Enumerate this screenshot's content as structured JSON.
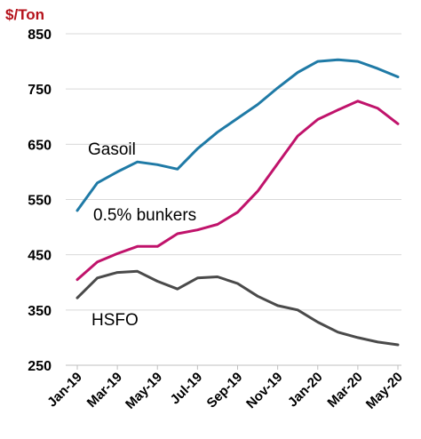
{
  "chart_data": {
    "type": "line",
    "unit_label": "$/Ton",
    "ylim": [
      250,
      850
    ],
    "yticks": [
      250,
      350,
      450,
      550,
      650,
      750,
      850
    ],
    "xtick_labels": [
      "Jan-19",
      "Mar-19",
      "May-19",
      "Jul-19",
      "Sep-19",
      "Nov-19",
      "Jan-20",
      "Mar-20",
      "May-20"
    ],
    "x": [
      "Jan-19",
      "Feb-19",
      "Mar-19",
      "Apr-19",
      "May-19",
      "Jun-19",
      "Jul-19",
      "Aug-19",
      "Sep-19",
      "Oct-19",
      "Nov-19",
      "Dec-19",
      "Jan-20",
      "Feb-20",
      "Mar-20",
      "Apr-20",
      "May-20"
    ],
    "grid": true,
    "series": [
      {
        "name": "Gasoil",
        "color": "#1f7aa6",
        "values": [
          530,
          580,
          600,
          618,
          613,
          605,
          642,
          672,
          697,
          722,
          752,
          780,
          800,
          803,
          800,
          787,
          772
        ]
      },
      {
        "name": "0.5% bunkers",
        "color": "#c0136b",
        "values": [
          405,
          437,
          452,
          465,
          465,
          488,
          495,
          505,
          527,
          565,
          615,
          665,
          695,
          712,
          728,
          715,
          687
        ]
      },
      {
        "name": "HSFO",
        "color": "#4a4a4a",
        "values": [
          372,
          408,
          418,
          420,
          402,
          388,
          408,
          410,
          398,
          375,
          358,
          350,
          328,
          310,
          300,
          292,
          287
        ]
      }
    ]
  }
}
